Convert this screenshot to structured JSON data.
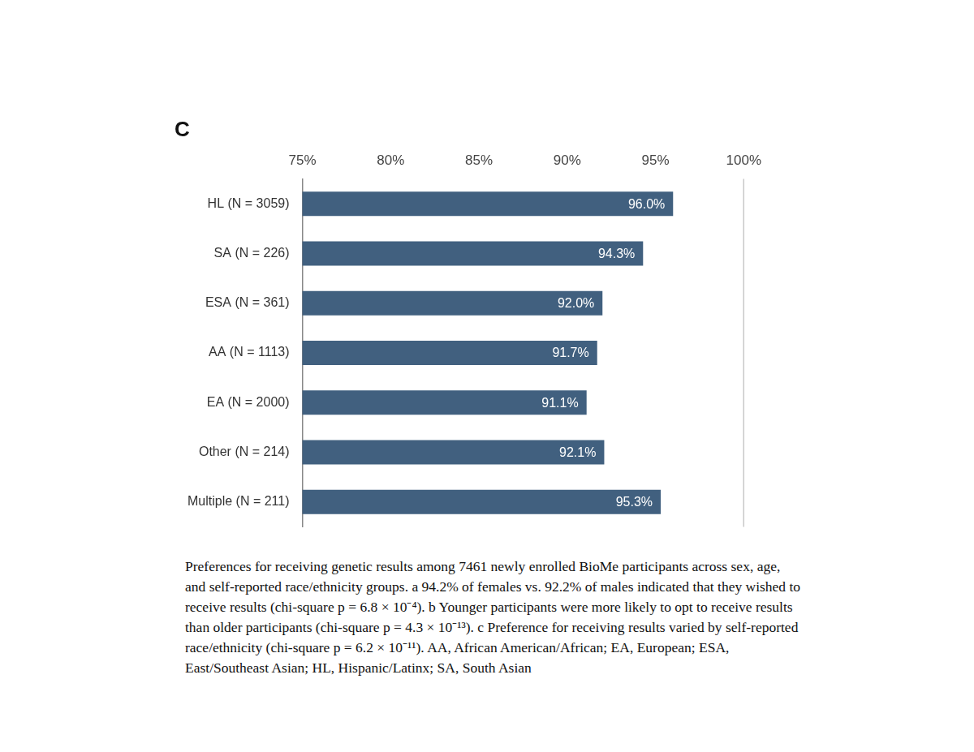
{
  "chart_data": {
    "type": "bar",
    "title": "C",
    "orientation": "horizontal",
    "categories": [
      "HL (N = 3059)",
      "SA (N = 226)",
      "ESA (N = 361)",
      "AA (N = 1113)",
      "EA (N = 2000)",
      "Other (N = 214)",
      "Multiple (N = 211)"
    ],
    "values": [
      96.0,
      94.3,
      92.0,
      91.7,
      91.1,
      92.1,
      95.3
    ],
    "value_labels": [
      "96.0%",
      "94.3%",
      "92.0%",
      "91.7%",
      "91.1%",
      "92.1%",
      "95.3%"
    ],
    "data_labels": true,
    "color": "#41607f",
    "xlim": [
      75,
      100
    ],
    "xticks": [
      {
        "value": 75,
        "label": "75%"
      },
      {
        "value": 80,
        "label": "80%"
      },
      {
        "value": 85,
        "label": "85%"
      },
      {
        "value": 90,
        "label": "90%"
      },
      {
        "value": 95,
        "label": "95%"
      },
      {
        "value": 100,
        "label": "100%"
      }
    ],
    "grid": false,
    "caption": "Preferences for receiving genetic results among 7461 newly enrolled BioMe participants across sex, age, and self-reported race/ethnicity groups. a 94.2% of females vs. 92.2% of males indicated that they wished to receive results (chi-square p = 6.8 × 10⁻⁴). b Younger participants were more likely to opt to receive results than older participants (chi-square p = 4.3 × 10⁻¹³). c Preference for receiving results varied by self-reported race/ethnicity (chi-square p = 6.2 × 10⁻¹¹). AA, African American/African; EA, European; ESA, East/Southeast Asian; HL, Hispanic/Latinx; SA, South Asian"
  }
}
